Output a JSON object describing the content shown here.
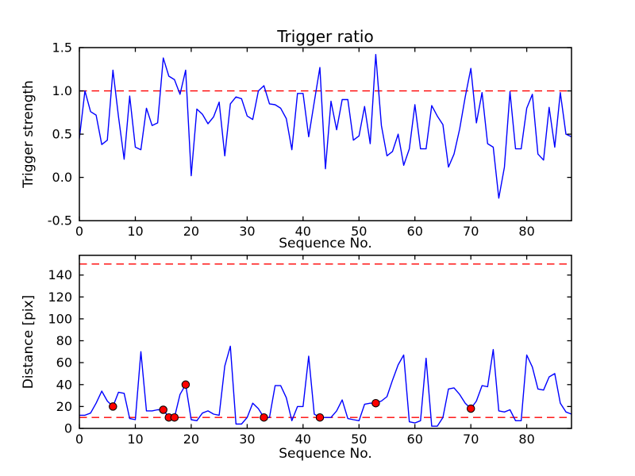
{
  "figure": {
    "background": "#ffffff"
  },
  "colors": {
    "line": "#0000ff",
    "threshold": "#ff0000",
    "marker": "#ff0000",
    "marker_edge": "#000000",
    "frame": "#000000",
    "text": "#000000"
  },
  "chart_data": [
    {
      "type": "line",
      "title": "Trigger ratio",
      "xlabel": "Sequence No.",
      "ylabel": "Trigger strength",
      "xlim": [
        0,
        88
      ],
      "ylim": [
        -0.5,
        1.5
      ],
      "xticks": [
        0,
        10,
        20,
        30,
        40,
        50,
        60,
        70,
        80
      ],
      "xticklabels": [
        "0",
        "10",
        "20",
        "30",
        "40",
        "50",
        "60",
        "70",
        "80"
      ],
      "yticks": [
        -0.5,
        0,
        0.5,
        1,
        1.5
      ],
      "yticklabels": [
        "-0.5",
        "0.0",
        "0.5",
        "1.0",
        "1.5"
      ],
      "thresholds": [
        1.0
      ],
      "grid": false,
      "legend": "none",
      "x_start": 0,
      "x_step": 1,
      "y": [
        0.45,
        1.0,
        0.76,
        0.72,
        0.38,
        0.43,
        1.24,
        0.7,
        0.21,
        0.94,
        0.35,
        0.32,
        0.8,
        0.6,
        0.63,
        1.38,
        1.17,
        1.13,
        0.96,
        1.24,
        0.02,
        0.79,
        0.73,
        0.62,
        0.7,
        0.87,
        0.25,
        0.85,
        0.93,
        0.91,
        0.71,
        0.67,
        1.0,
        1.06,
        0.85,
        0.84,
        0.8,
        0.68,
        0.32,
        0.97,
        0.97,
        0.47,
        0.87,
        1.27,
        0.1,
        0.88,
        0.55,
        0.9,
        0.9,
        0.43,
        0.48,
        0.82,
        0.39,
        1.42,
        0.6,
        0.25,
        0.3,
        0.5,
        0.14,
        0.33,
        0.84,
        0.33,
        0.33,
        0.83,
        0.71,
        0.61,
        0.12,
        0.27,
        0.56,
        0.93,
        1.26,
        0.63,
        0.98,
        0.39,
        0.35,
        -0.24,
        0.12,
        0.99,
        0.33,
        0.33,
        0.8,
        0.96,
        0.27,
        0.2,
        0.81,
        0.35,
        0.98,
        0.5,
        0.47
      ]
    },
    {
      "type": "line",
      "title": "",
      "xlabel": "Sequence No.",
      "ylabel": "Distance [pix]",
      "xlim": [
        0,
        88
      ],
      "ylim": [
        0,
        158
      ],
      "xticks": [
        0,
        10,
        20,
        30,
        40,
        50,
        60,
        70,
        80
      ],
      "xticklabels": [
        "0",
        "10",
        "20",
        "30",
        "40",
        "50",
        "60",
        "70",
        "80"
      ],
      "yticks": [
        0,
        20,
        40,
        60,
        80,
        100,
        120,
        140
      ],
      "yticklabels": [
        "0",
        "20",
        "40",
        "60",
        "80",
        "100",
        "120",
        "140"
      ],
      "thresholds": [
        150,
        10
      ],
      "grid": false,
      "legend": "none",
      "x_start": 0,
      "x_step": 1,
      "y": [
        12,
        12,
        14,
        23,
        34,
        25,
        20,
        33,
        32,
        9,
        8,
        70,
        16,
        16,
        17,
        17,
        10,
        10,
        31,
        40,
        8,
        7,
        14,
        16,
        13,
        12,
        57,
        75,
        4,
        4,
        10,
        23,
        18,
        10,
        10,
        39,
        39,
        28,
        7,
        20,
        20,
        66,
        13,
        10,
        10,
        10,
        16,
        26,
        9,
        8,
        7,
        22,
        23,
        23,
        25,
        29,
        44,
        58,
        67,
        6,
        5,
        7,
        64,
        2,
        2,
        10,
        36,
        37,
        31,
        23,
        18,
        25,
        39,
        38,
        72,
        16,
        15,
        17,
        7,
        7,
        67,
        56,
        36,
        35,
        47,
        50,
        23,
        15,
        13
      ],
      "markers": [
        {
          "x": 6,
          "y": 20
        },
        {
          "x": 15,
          "y": 17
        },
        {
          "x": 16,
          "y": 10
        },
        {
          "x": 17,
          "y": 10
        },
        {
          "x": 19,
          "y": 40
        },
        {
          "x": 33,
          "y": 10
        },
        {
          "x": 43,
          "y": 10
        },
        {
          "x": 53,
          "y": 23
        },
        {
          "x": 70,
          "y": 18
        }
      ]
    }
  ]
}
